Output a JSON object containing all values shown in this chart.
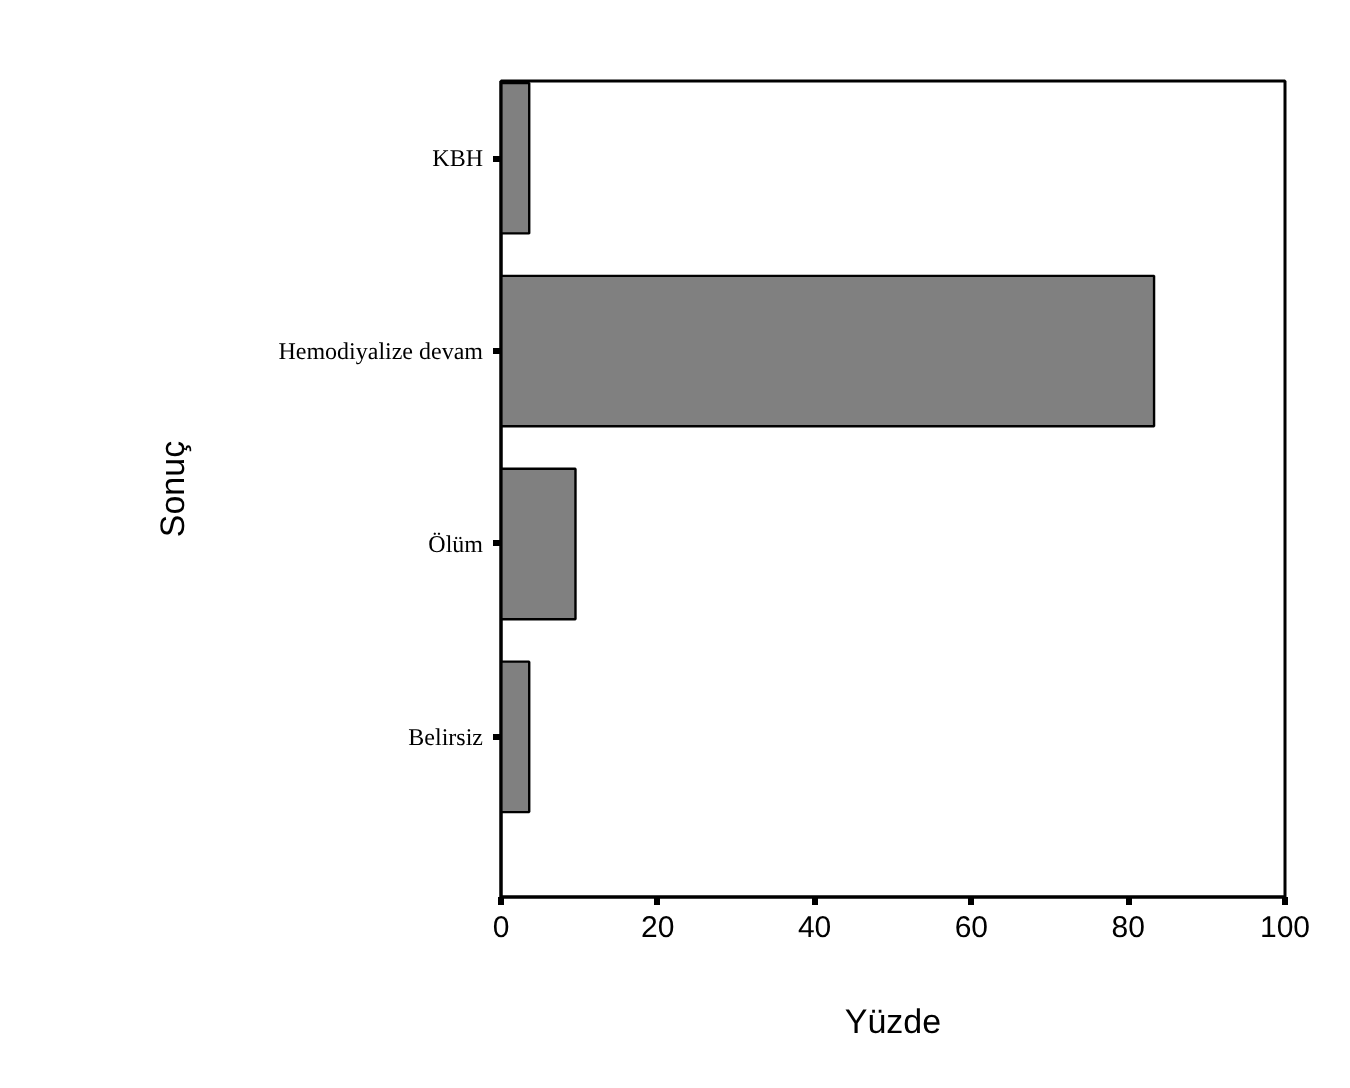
{
  "chart_data": {
    "type": "bar",
    "orientation": "horizontal",
    "xlabel": "Yüzde",
    "ylabel": "Sonuç",
    "categories": [
      "KBH",
      "Hemodiyalize devam",
      "Ölüm",
      "Belirsiz"
    ],
    "values": [
      3.6,
      83.3,
      9.5,
      3.6
    ],
    "color": "#808080",
    "xlim": [
      0,
      100
    ],
    "xticks": [
      0,
      20,
      40,
      60,
      80,
      100
    ],
    "grid": false
  }
}
